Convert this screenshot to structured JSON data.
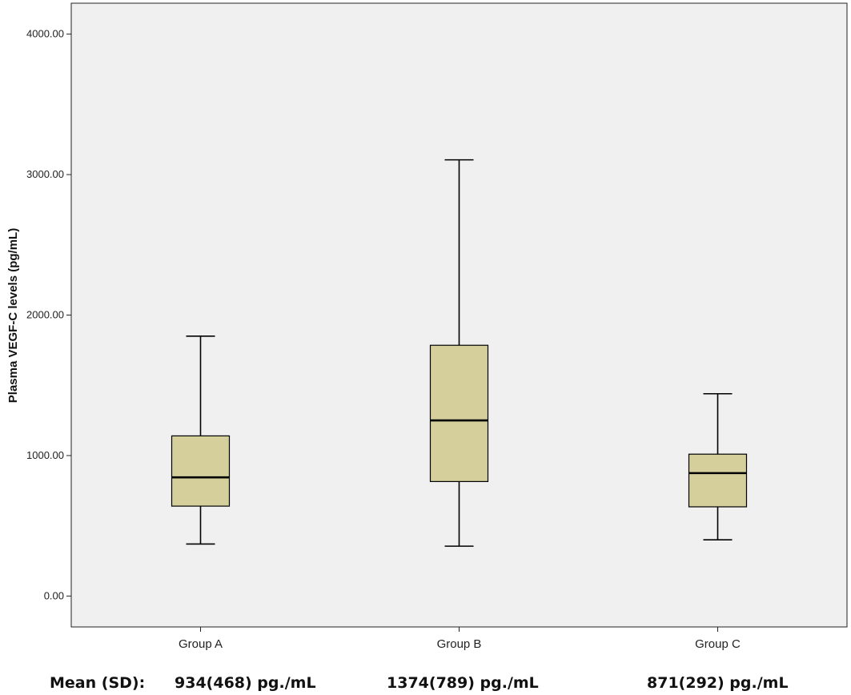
{
  "chart_data": {
    "type": "boxplot",
    "title": "",
    "xlabel": "",
    "ylabel": "Plasma VEGF-C levels (pg/mL)",
    "ylim": [
      -220,
      4220
    ],
    "y_ticks": [
      0,
      1000,
      2000,
      3000,
      4000
    ],
    "y_tick_labels": [
      "0.00",
      "1000.00",
      "2000.00",
      "3000.00",
      "4000.00"
    ],
    "grid": false,
    "categories": [
      "Group A",
      "Group B",
      "Group C"
    ],
    "boxes": [
      {
        "category": "Group A",
        "whisker_low": 370,
        "q1": 640,
        "median": 845,
        "q3": 1140,
        "whisker_high": 1850
      },
      {
        "category": "Group B",
        "whisker_low": 355,
        "q1": 815,
        "median": 1250,
        "q3": 1785,
        "whisker_high": 3105
      },
      {
        "category": "Group C",
        "whisker_low": 400,
        "q1": 635,
        "median": 875,
        "q3": 1010,
        "whisker_high": 1440
      }
    ],
    "colors": {
      "plot_background": "#F0F0F0",
      "box_fill": "#D4CF9B",
      "box_stroke": "#000000"
    }
  },
  "footer": {
    "label": "Mean (SD):",
    "values": [
      "934(468) pg./mL",
      "1374(789) pg./mL",
      "871(292) pg./mL"
    ]
  }
}
